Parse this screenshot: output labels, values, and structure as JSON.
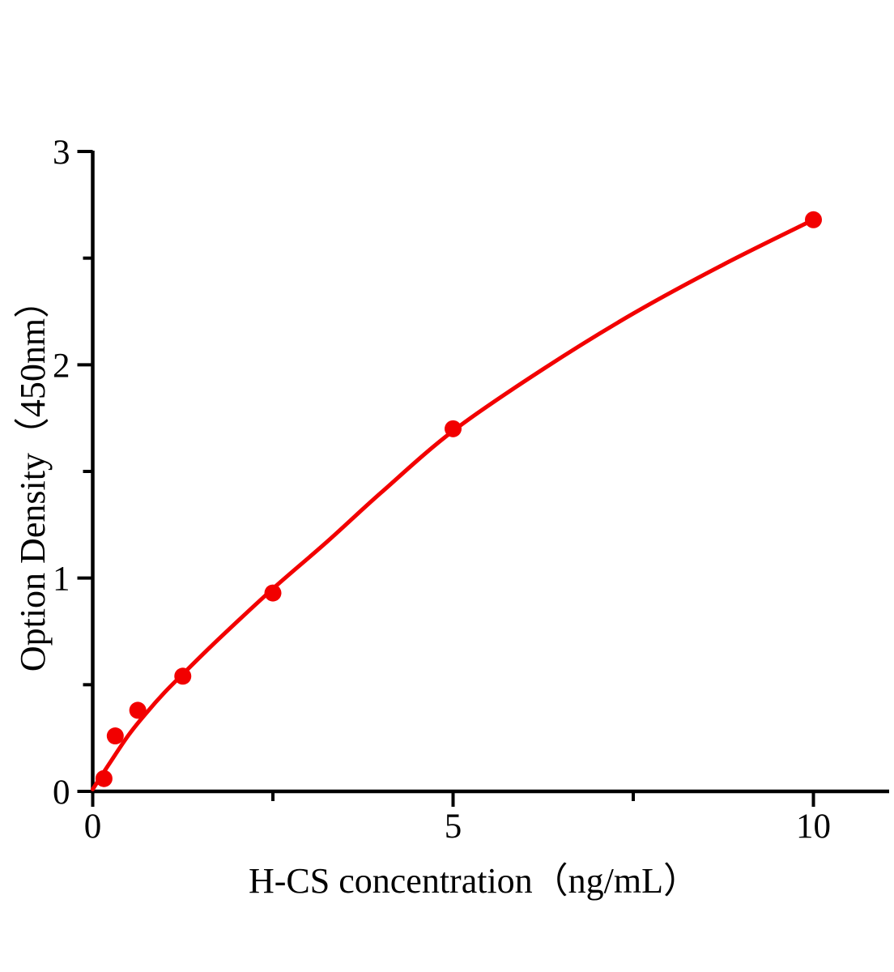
{
  "page": {
    "background_color": "#ffffff"
  },
  "chart_data": {
    "type": "scatter",
    "title": "",
    "xlabel": "H-CS concentration（ng/mL）",
    "ylabel": "Option Density（450nm）",
    "xlim": [
      0,
      11.05
    ],
    "ylim": [
      0,
      3
    ],
    "grid": false,
    "legend": "none",
    "axis_color": "#000000",
    "text_color": "#000000",
    "accent_color": "#f20000",
    "x_major_ticks": {
      "values": [
        0,
        5,
        10
      ],
      "labels": [
        "0",
        "5",
        "10"
      ]
    },
    "x_minor_ticks": [
      2.5,
      7.5
    ],
    "y_major_ticks": {
      "values": [
        0,
        1,
        2,
        3
      ],
      "labels": [
        "0",
        "1",
        "2",
        "3"
      ]
    },
    "y_minor_ticks": [
      0.5,
      1.5,
      2.5
    ],
    "series": [
      {
        "name": "standard points",
        "type": "scatter",
        "marker": "circle",
        "color": "#f20000",
        "points": [
          {
            "x": 0.156,
            "y": 0.06
          },
          {
            "x": 0.3125,
            "y": 0.26
          },
          {
            "x": 0.625,
            "y": 0.38
          },
          {
            "x": 1.25,
            "y": 0.54
          },
          {
            "x": 2.5,
            "y": 0.93
          },
          {
            "x": 5,
            "y": 1.7
          },
          {
            "x": 10,
            "y": 2.68
          }
        ]
      },
      {
        "name": "fitted curve",
        "type": "line",
        "color": "#f20000",
        "points": [
          {
            "x": 0,
            "y": 0.01
          },
          {
            "x": 0.25,
            "y": 0.14
          },
          {
            "x": 0.5,
            "y": 0.265
          },
          {
            "x": 0.75,
            "y": 0.37
          },
          {
            "x": 1.0,
            "y": 0.465
          },
          {
            "x": 1.25,
            "y": 0.55
          },
          {
            "x": 1.75,
            "y": 0.715
          },
          {
            "x": 2.5,
            "y": 0.95
          },
          {
            "x": 3.25,
            "y": 1.17
          },
          {
            "x": 4.0,
            "y": 1.4
          },
          {
            "x": 5.0,
            "y": 1.69
          },
          {
            "x": 6.25,
            "y": 1.98
          },
          {
            "x": 7.5,
            "y": 2.24
          },
          {
            "x": 8.75,
            "y": 2.47
          },
          {
            "x": 10,
            "y": 2.68
          }
        ]
      }
    ]
  }
}
